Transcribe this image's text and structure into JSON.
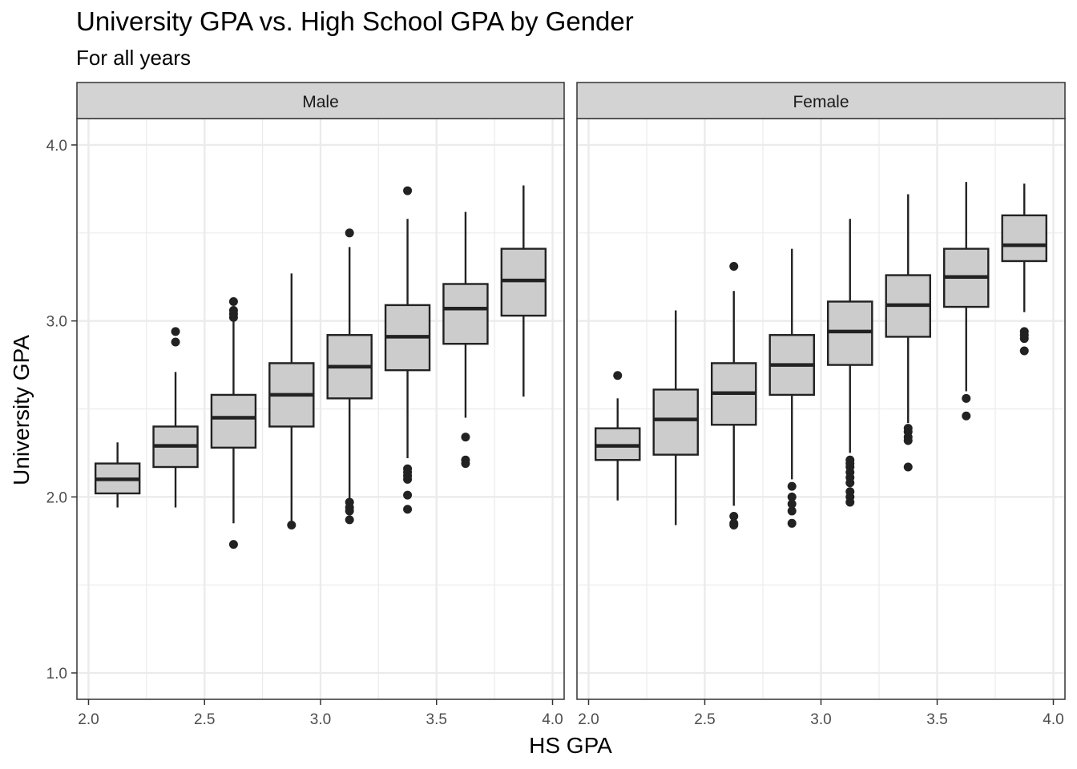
{
  "chart_data": {
    "type": "boxplot",
    "title": "University GPA vs. High School GPA by Gender",
    "subtitle": "For all years",
    "xlabel": "HS GPA",
    "ylabel": "University GPA",
    "xlim": [
      1.95,
      4.05
    ],
    "ylim": [
      0.85,
      4.15
    ],
    "xticks": [
      2.0,
      2.5,
      3.0,
      3.5,
      4.0
    ],
    "xtick_labels": [
      "2.0",
      "2.5",
      "3.0",
      "3.5",
      "4.0"
    ],
    "yticks": [
      1.0,
      2.0,
      3.0,
      4.0
    ],
    "ytick_labels": [
      "1.0",
      "2.0",
      "3.0",
      "4.0"
    ],
    "grid": true,
    "box_fill": "#cccccc",
    "box_stroke": "#222222",
    "panel_strip_fill": "#d3d3d3",
    "grid_color": "#ebebeb",
    "panels": [
      {
        "label": "Male",
        "boxes": [
          {
            "x": 2.125,
            "lower": 1.94,
            "q1": 2.02,
            "median": 2.1,
            "q3": 2.19,
            "upper": 2.31,
            "outliers": []
          },
          {
            "x": 2.375,
            "lower": 1.94,
            "q1": 2.17,
            "median": 2.29,
            "q3": 2.4,
            "upper": 2.71,
            "outliers": [
              2.88,
              2.94
            ]
          },
          {
            "x": 2.625,
            "lower": 1.85,
            "q1": 2.28,
            "median": 2.45,
            "q3": 2.58,
            "upper": 3.0,
            "outliers": [
              1.73,
              3.02,
              3.04,
              3.06,
              3.11
            ]
          },
          {
            "x": 2.875,
            "lower": 1.84,
            "q1": 2.4,
            "median": 2.58,
            "q3": 2.76,
            "upper": 3.27,
            "outliers": [
              1.84
            ]
          },
          {
            "x": 3.125,
            "lower": 1.99,
            "q1": 2.56,
            "median": 2.74,
            "q3": 2.92,
            "upper": 3.42,
            "outliers": [
              1.87,
              1.92,
              1.94,
              1.97,
              3.5
            ]
          },
          {
            "x": 3.375,
            "lower": 2.22,
            "q1": 2.72,
            "median": 2.91,
            "q3": 3.09,
            "upper": 3.58,
            "outliers": [
              1.93,
              2.01,
              2.1,
              2.12,
              2.14,
              2.16,
              3.74
            ]
          },
          {
            "x": 3.625,
            "lower": 2.45,
            "q1": 2.87,
            "median": 3.07,
            "q3": 3.21,
            "upper": 3.62,
            "outliers": [
              2.19,
              2.21,
              2.34
            ]
          },
          {
            "x": 3.875,
            "lower": 2.57,
            "q1": 3.03,
            "median": 3.23,
            "q3": 3.41,
            "upper": 3.77,
            "outliers": []
          }
        ]
      },
      {
        "label": "Female",
        "boxes": [
          {
            "x": 2.125,
            "lower": 1.98,
            "q1": 2.21,
            "median": 2.29,
            "q3": 2.39,
            "upper": 2.56,
            "outliers": [
              2.69
            ]
          },
          {
            "x": 2.375,
            "lower": 1.84,
            "q1": 2.24,
            "median": 2.44,
            "q3": 2.61,
            "upper": 3.06,
            "outliers": []
          },
          {
            "x": 2.625,
            "lower": 1.95,
            "q1": 2.41,
            "median": 2.59,
            "q3": 2.76,
            "upper": 3.17,
            "outliers": [
              1.84,
              1.85,
              1.89,
              3.31
            ]
          },
          {
            "x": 2.875,
            "lower": 2.1,
            "q1": 2.58,
            "median": 2.75,
            "q3": 2.92,
            "upper": 3.41,
            "outliers": [
              1.85,
              1.92,
              1.96,
              2.0,
              2.06
            ]
          },
          {
            "x": 3.125,
            "lower": 2.25,
            "q1": 2.75,
            "median": 2.94,
            "q3": 3.11,
            "upper": 3.58,
            "outliers": [
              1.97,
              2.0,
              2.03,
              2.08,
              2.11,
              2.14,
              2.17,
              2.19,
              2.21
            ]
          },
          {
            "x": 3.375,
            "lower": 2.42,
            "q1": 2.91,
            "median": 3.09,
            "q3": 3.26,
            "upper": 3.72,
            "outliers": [
              2.17,
              2.32,
              2.34,
              2.37,
              2.39
            ]
          },
          {
            "x": 3.625,
            "lower": 2.6,
            "q1": 3.08,
            "median": 3.25,
            "q3": 3.41,
            "upper": 3.79,
            "outliers": [
              2.46,
              2.56
            ]
          },
          {
            "x": 3.875,
            "lower": 3.05,
            "q1": 3.34,
            "median": 3.43,
            "q3": 3.6,
            "upper": 3.78,
            "outliers": [
              2.83,
              2.9,
              2.92,
              2.94
            ]
          }
        ]
      }
    ]
  }
}
